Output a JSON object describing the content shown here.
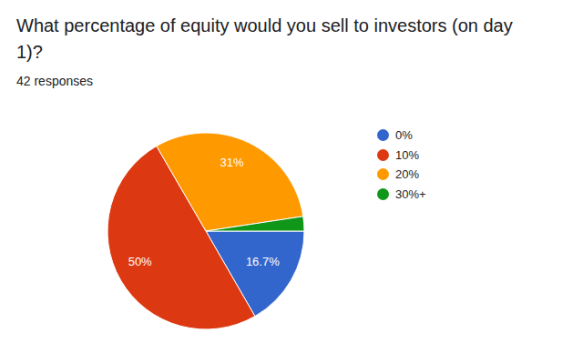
{
  "chart_data": {
    "type": "pie",
    "title": "What percentage of equity would you sell to investors (on day 1)?",
    "subtitle": "42 responses",
    "categories": [
      "0%",
      "10%",
      "20%",
      "30%+"
    ],
    "values": [
      16.7,
      50,
      31,
      2.4
    ],
    "value_labels": [
      "16.7%",
      "50%",
      "31%",
      null
    ],
    "colors": [
      "#3366cc",
      "#dc3912",
      "#ff9900",
      "#109618"
    ],
    "data_labels": true,
    "legend": "right"
  }
}
